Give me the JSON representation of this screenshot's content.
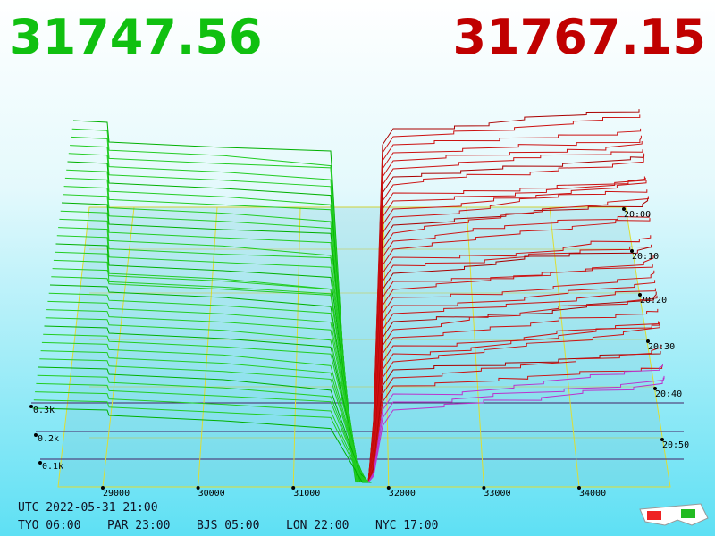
{
  "header": {
    "bid": "31747.56",
    "ask": "31767.15"
  },
  "price_axis": [
    "29000",
    "30000",
    "31000",
    "32000",
    "33000",
    "34000"
  ],
  "depth_axis": [
    "0.3k",
    "0.2k",
    "0.1k"
  ],
  "time_axis": [
    "20:00",
    "20:10",
    "20:20",
    "20:30",
    "20:40",
    "20:50"
  ],
  "footer": {
    "utc": "UTC 2022-05-31 21:00",
    "zones": [
      "TYO 06:00",
      "PAR 23:00",
      "BJS 05:00",
      "LON 22:00",
      "NYC 17:00"
    ]
  }
}
